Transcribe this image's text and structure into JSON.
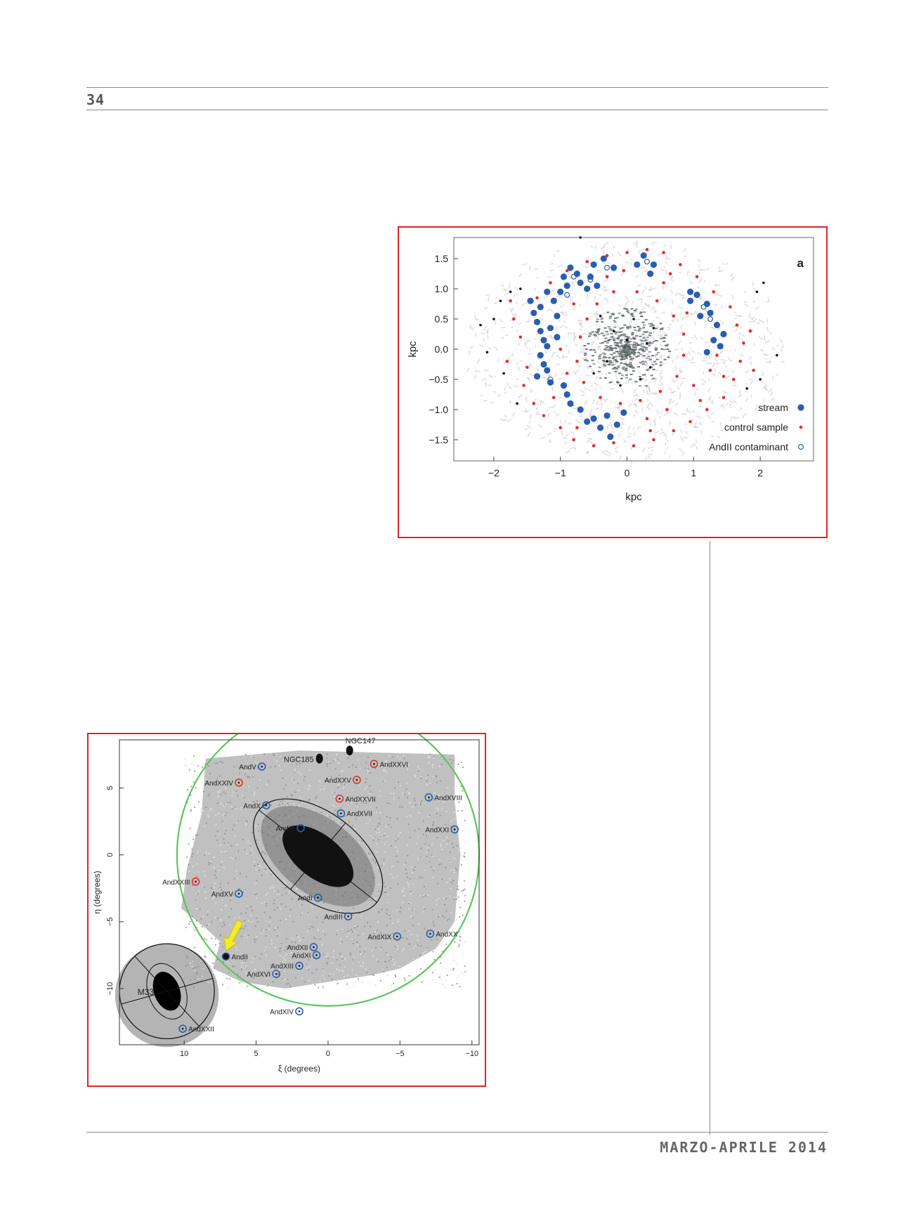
{
  "page": {
    "number": "34",
    "footer": "MARZO-APRILE 2014"
  },
  "colors": {
    "frame": "#d9262c",
    "stream": "#2a5db0",
    "control": "#e3302c",
    "contaminant": "#2a5db0",
    "ring": "#5ec45e"
  },
  "chart_data": [
    {
      "type": "scatter",
      "panel_label": "a",
      "xlabel": "kpc",
      "ylabel": "kpc",
      "xlim": [
        -2.6,
        2.8
      ],
      "ylim": [
        -1.85,
        1.85
      ],
      "xticks": [
        -2,
        -1,
        0,
        1,
        2
      ],
      "yticks": [
        -1.5,
        -1.0,
        -0.5,
        0.0,
        0.5,
        1.0,
        1.5
      ],
      "xticklabels": [
        "−2",
        "−1",
        "0",
        "1",
        "2"
      ],
      "yticklabels": [
        "−1.5",
        "−1.0",
        "−0.5",
        "0.0",
        "0.5",
        "1.0",
        "1.5"
      ],
      "legend_position": "bottom-right",
      "series": [
        {
          "name": "stream",
          "marker": "filled-large",
          "color": "#2a5db0",
          "points": [
            [
              -1.4,
              0.6
            ],
            [
              -1.35,
              0.45
            ],
            [
              -1.3,
              0.3
            ],
            [
              -1.25,
              0.15
            ],
            [
              -1.2,
              0.05
            ],
            [
              -1.3,
              -0.1
            ],
            [
              -1.25,
              -0.25
            ],
            [
              -1.2,
              -0.35
            ],
            [
              -1.3,
              0.7
            ],
            [
              -1.1,
              0.8
            ],
            [
              -1.0,
              0.95
            ],
            [
              -0.9,
              1.05
            ],
            [
              -0.95,
              1.2
            ],
            [
              -0.85,
              1.35
            ],
            [
              -0.75,
              1.25
            ],
            [
              -0.7,
              1.1
            ],
            [
              -0.6,
              1.0
            ],
            [
              -0.55,
              1.2
            ],
            [
              -0.5,
              1.4
            ],
            [
              -0.35,
              1.5
            ],
            [
              -0.2,
              1.35
            ],
            [
              -0.45,
              1.05
            ],
            [
              -1.05,
              0.55
            ],
            [
              -1.15,
              0.35
            ],
            [
              -1.05,
              0.2
            ],
            [
              -0.95,
              -0.6
            ],
            [
              -0.9,
              -0.75
            ],
            [
              -0.85,
              -0.9
            ],
            [
              -0.7,
              -1.0
            ],
            [
              -0.5,
              -1.15
            ],
            [
              -0.4,
              -1.3
            ],
            [
              -0.25,
              -1.45
            ],
            [
              -0.15,
              -1.25
            ],
            [
              -0.05,
              -1.05
            ],
            [
              0.25,
              1.55
            ],
            [
              0.4,
              1.4
            ],
            [
              0.35,
              1.25
            ],
            [
              0.15,
              1.4
            ],
            [
              0.95,
              0.95
            ],
            [
              1.05,
              0.9
            ],
            [
              1.2,
              0.75
            ],
            [
              1.25,
              0.6
            ],
            [
              1.35,
              0.4
            ],
            [
              1.45,
              0.25
            ],
            [
              1.3,
              0.15
            ],
            [
              1.4,
              0.05
            ],
            [
              1.2,
              -0.05
            ],
            [
              1.1,
              0.55
            ],
            [
              0.95,
              0.8
            ],
            [
              -1.45,
              0.8
            ],
            [
              -1.2,
              0.95
            ],
            [
              -1.35,
              -0.45
            ],
            [
              -1.15,
              -0.55
            ],
            [
              -0.6,
              -1.2
            ],
            [
              -0.3,
              -1.1
            ]
          ]
        },
        {
          "name": "control sample",
          "marker": "filled-small",
          "color": "#e3302c",
          "points": [
            [
              -1.6,
              0.2
            ],
            [
              -1.5,
              -0.3
            ],
            [
              -1.7,
              0.5
            ],
            [
              -1.55,
              -0.6
            ],
            [
              -1.4,
              -0.9
            ],
            [
              -1.25,
              -1.1
            ],
            [
              -1.0,
              -1.3
            ],
            [
              -0.8,
              -1.5
            ],
            [
              -0.5,
              -1.6
            ],
            [
              -0.2,
              -1.55
            ],
            [
              0.1,
              -1.6
            ],
            [
              0.4,
              -1.5
            ],
            [
              0.7,
              -1.35
            ],
            [
              0.95,
              -1.2
            ],
            [
              1.2,
              -1.0
            ],
            [
              1.45,
              -0.8
            ],
            [
              1.6,
              -0.5
            ],
            [
              1.7,
              -0.2
            ],
            [
              1.75,
              0.1
            ],
            [
              1.65,
              0.4
            ],
            [
              1.55,
              0.7
            ],
            [
              1.3,
              0.95
            ],
            [
              1.05,
              1.2
            ],
            [
              0.8,
              1.4
            ],
            [
              0.55,
              1.6
            ],
            [
              0.3,
              1.65
            ],
            [
              0.0,
              1.6
            ],
            [
              -0.3,
              1.55
            ],
            [
              -0.6,
              1.45
            ],
            [
              -0.9,
              1.3
            ],
            [
              -1.15,
              1.1
            ],
            [
              -1.35,
              0.85
            ],
            [
              -0.6,
              0.5
            ],
            [
              -0.7,
              0.2
            ],
            [
              -0.75,
              -0.2
            ],
            [
              -0.65,
              -0.55
            ],
            [
              -0.4,
              -0.8
            ],
            [
              -0.1,
              -0.9
            ],
            [
              0.2,
              -0.85
            ],
            [
              0.5,
              -0.7
            ],
            [
              0.75,
              -0.45
            ],
            [
              0.85,
              -0.1
            ],
            [
              0.85,
              0.25
            ],
            [
              0.7,
              0.55
            ],
            [
              0.45,
              0.8
            ],
            [
              0.15,
              0.95
            ],
            [
              -0.2,
              0.95
            ],
            [
              -0.45,
              0.75
            ],
            [
              1.0,
              -0.6
            ],
            [
              1.25,
              -0.35
            ],
            [
              1.35,
              -0.1
            ],
            [
              0.6,
              -1.0
            ],
            [
              0.3,
              -1.15
            ],
            [
              -0.9,
              -0.4
            ],
            [
              -1.0,
              0.0
            ],
            [
              0.9,
              0.6
            ],
            [
              0.55,
              1.1
            ],
            [
              -0.3,
              1.2
            ],
            [
              -0.8,
              0.75
            ],
            [
              1.45,
              -0.45
            ],
            [
              1.1,
              -0.85
            ],
            [
              0.35,
              -1.35
            ],
            [
              -0.75,
              -1.3
            ],
            [
              -1.1,
              -0.8
            ],
            [
              0.65,
              1.25
            ],
            [
              -0.05,
              1.3
            ],
            [
              1.85,
              0.3
            ],
            [
              1.9,
              -0.35
            ],
            [
              -1.8,
              -0.2
            ],
            [
              -1.75,
              0.8
            ]
          ]
        },
        {
          "name": "AndII contaminant",
          "marker": "open-circle",
          "color": "#2a5db0",
          "points": [
            [
              -0.9,
              0.9
            ],
            [
              -0.8,
              1.2
            ],
            [
              -0.3,
              1.35
            ],
            [
              0.3,
              1.45
            ],
            [
              1.25,
              0.5
            ],
            [
              -1.15,
              -0.5
            ],
            [
              -0.55,
              1.15
            ],
            [
              1.15,
              0.7
            ]
          ]
        }
      ],
      "background_points": [
        [
          -2.2,
          0.4
        ],
        [
          -2.0,
          0.5
        ],
        [
          -1.9,
          0.8
        ],
        [
          -1.75,
          0.95
        ],
        [
          2.0,
          -0.5
        ],
        [
          2.25,
          -0.1
        ],
        [
          1.95,
          0.95
        ],
        [
          2.05,
          1.1
        ],
        [
          -0.7,
          1.85
        ],
        [
          0.1,
          0.5
        ],
        [
          -0.2,
          0.3
        ],
        [
          0.3,
          0.1
        ],
        [
          -0.3,
          -0.2
        ],
        [
          0.2,
          -0.5
        ],
        [
          -0.4,
          0.55
        ],
        [
          0.4,
          0.35
        ],
        [
          -0.1,
          -0.6
        ],
        [
          0.0,
          0.15
        ],
        [
          -0.5,
          -0.4
        ],
        [
          0.35,
          -0.3
        ],
        [
          -2.1,
          -0.05
        ],
        [
          -1.85,
          -0.4
        ],
        [
          1.8,
          -0.65
        ],
        [
          -1.6,
          1.0
        ],
        [
          -1.65,
          -0.9
        ]
      ]
    },
    {
      "type": "scatter",
      "xlabel": "ξ (degrees)",
      "ylabel": "η (degrees)",
      "xlim": [
        14.5,
        -10.5
      ],
      "ylim": [
        -14.2,
        8.6
      ],
      "xticks": [
        10,
        5,
        0,
        -5,
        -10
      ],
      "yticks": [
        5,
        0,
        -5,
        -10
      ],
      "xticklabels": [
        "10",
        "5",
        "0",
        "−5",
        "−10"
      ],
      "yticklabels": [
        "5",
        "0",
        "−5",
        "−10"
      ],
      "ring": {
        "center": [
          0,
          0
        ],
        "radius": 10.5
      },
      "galaxies": [
        {
          "label": "NGC185",
          "x": 0.6,
          "y": 7.2
        },
        {
          "label": "NGC147",
          "x": -1.5,
          "y": 7.8
        },
        {
          "label": "M33",
          "x": 11.2,
          "y": -10.2
        }
      ],
      "satellites": [
        {
          "label": "AndV",
          "x": 4.6,
          "y": 6.6,
          "color": "blue"
        },
        {
          "label": "AndXXVI",
          "x": -3.2,
          "y": 6.8,
          "color": "red"
        },
        {
          "label": "AndXXIV",
          "x": 6.2,
          "y": 5.4,
          "color": "red"
        },
        {
          "label": "AndXXV",
          "x": -2.0,
          "y": 5.6,
          "color": "red"
        },
        {
          "label": "AndXVIII",
          "x": -7.0,
          "y": 4.3,
          "color": "blue"
        },
        {
          "label": "AndXXVII",
          "x": -0.8,
          "y": 4.2,
          "color": "red"
        },
        {
          "label": "AndX",
          "x": 4.3,
          "y": 3.7,
          "color": "blue"
        },
        {
          "label": "AndXVII",
          "x": -0.9,
          "y": 3.1,
          "color": "blue"
        },
        {
          "label": "AndIX",
          "x": 1.9,
          "y": 2.0,
          "color": "blue"
        },
        {
          "label": "AndXXI",
          "x": -8.8,
          "y": 1.9,
          "color": "blue"
        },
        {
          "label": "AndXXIII",
          "x": 9.2,
          "y": -2.0,
          "color": "red"
        },
        {
          "label": "AndXV",
          "x": 6.2,
          "y": -2.9,
          "color": "blue"
        },
        {
          "label": "AndI",
          "x": 0.7,
          "y": -3.2,
          "color": "blue"
        },
        {
          "label": "AndIII",
          "x": -1.4,
          "y": -4.6,
          "color": "blue"
        },
        {
          "label": "AndXIX",
          "x": -4.8,
          "y": -6.1,
          "color": "blue"
        },
        {
          "label": "AndXX",
          "x": -7.1,
          "y": -5.9,
          "color": "blue"
        },
        {
          "label": "AndXII",
          "x": 1.0,
          "y": -6.9,
          "color": "blue"
        },
        {
          "label": "AndXI",
          "x": 0.8,
          "y": -7.5,
          "color": "blue"
        },
        {
          "label": "AndII",
          "x": 7.1,
          "y": -7.6,
          "color": "filled"
        },
        {
          "label": "AndXIII",
          "x": 2.0,
          "y": -8.3,
          "color": "blue"
        },
        {
          "label": "AndXVI",
          "x": 3.6,
          "y": -8.9,
          "color": "blue"
        },
        {
          "label": "AndXIV",
          "x": 2.0,
          "y": -11.7,
          "color": "blue"
        },
        {
          "label": "AndXXII",
          "x": 10.1,
          "y": -13.0,
          "color": "blue"
        }
      ],
      "highlight_arrow_target": "AndII"
    }
  ]
}
